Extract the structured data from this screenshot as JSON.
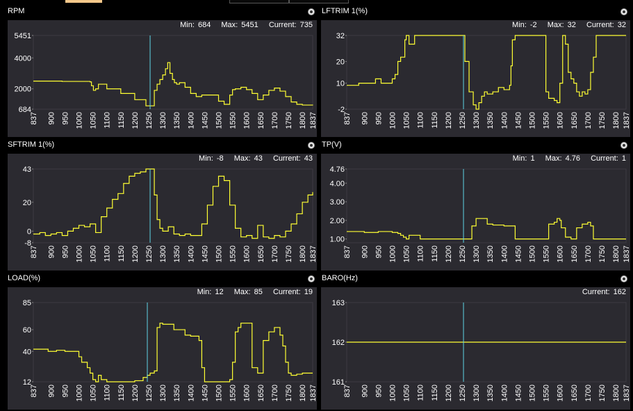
{
  "x_ticks": [
    "837",
    "900",
    "950",
    "1000",
    "1050",
    "1100",
    "1150",
    "1200",
    "1250",
    "1300",
    "1350",
    "1400",
    "1450",
    "1500",
    "1550",
    "1600",
    "1650",
    "1700",
    "1750",
    "1800",
    "1837"
  ],
  "colors": {
    "line": "#ffff33",
    "cursor": "#5fd6e8",
    "plot_bg": "#2b2a30",
    "grid": "#3c3b42"
  },
  "icons": {
    "settings": "settings-gear-icon"
  },
  "panels": {
    "rpm": {
      "title": "RPM",
      "min_label": "Min:",
      "min": "684",
      "max_label": "Max:",
      "max": "5451",
      "current_label": "Current:",
      "current": "735",
      "chart_data": {
        "type": "line",
        "ylim": [
          684,
          5451
        ],
        "y_ticks": [
          "5451",
          "4000",
          "2000",
          "684"
        ],
        "y_tick_values": [
          5451,
          4000,
          2000,
          684
        ],
        "xlim": [
          837,
          1837
        ],
        "cursor_x": 1255,
        "x": [
          837,
          940,
          1000,
          1040,
          1045,
          1052,
          1060,
          1070,
          1100,
          1150,
          1200,
          1240,
          1250,
          1255,
          1262,
          1270,
          1280,
          1290,
          1300,
          1310,
          1318,
          1326,
          1335,
          1342,
          1350,
          1360,
          1380,
          1400,
          1420,
          1440,
          1460,
          1500,
          1520,
          1540,
          1550,
          1560,
          1580,
          1600,
          1620,
          1640,
          1660,
          1680,
          1700,
          1720,
          1740,
          1760,
          1780,
          1800,
          1837
        ],
        "y": [
          2500,
          2480,
          2480,
          2450,
          2200,
          1900,
          2000,
          2300,
          2000,
          1700,
          1300,
          900,
          900,
          900,
          900,
          1900,
          2300,
          2600,
          2900,
          3300,
          3700,
          3000,
          2600,
          2400,
          2300,
          2400,
          2100,
          1700,
          1500,
          1600,
          1600,
          1200,
          1000,
          1600,
          1950,
          2000,
          2100,
          1950,
          1700,
          1300,
          1600,
          1900,
          2050,
          1850,
          1500,
          1150,
          1000,
          950,
          930
        ]
      }
    },
    "lftrim": {
      "title": "LFTRIM 1(%)",
      "min_label": "Min:",
      "min": "-2",
      "max_label": "Max:",
      "max": "32",
      "current_label": "Current:",
      "current": "32",
      "chart_data": {
        "type": "line",
        "ylim": [
          -2,
          32
        ],
        "y_ticks": [
          "32",
          "20",
          "10",
          "-2"
        ],
        "y_tick_values": [
          32,
          20,
          10,
          -2
        ],
        "xlim": [
          837,
          1837
        ],
        "cursor_x": 1255,
        "x": [
          837,
          880,
          900,
          940,
          960,
          980,
          1000,
          1010,
          1020,
          1030,
          1045,
          1050,
          1060,
          1080,
          1100,
          1200,
          1250,
          1260,
          1275,
          1290,
          1300,
          1310,
          1320,
          1330,
          1340,
          1360,
          1380,
          1400,
          1420,
          1425,
          1430,
          1440,
          1540,
          1550,
          1560,
          1580,
          1590,
          1600,
          1610,
          1620,
          1630,
          1640,
          1650,
          1660,
          1670,
          1680,
          1690,
          1700,
          1710,
          1720,
          1730,
          1837
        ],
        "y": [
          9,
          10,
          10,
          12,
          10,
          10,
          12,
          14,
          20,
          22,
          30,
          32,
          28,
          32,
          32,
          32,
          32,
          20,
          6,
          0,
          -2,
          1,
          4,
          6,
          5,
          6,
          8,
          7,
          9,
          18,
          30,
          32,
          32,
          6,
          3,
          2,
          1,
          10,
          32,
          28,
          15,
          12,
          10,
          6,
          4,
          6,
          5,
          7,
          15,
          22,
          32,
          32
        ]
      }
    },
    "sftrim": {
      "title": "SFTRIM 1(%)",
      "min_label": "Min:",
      "min": "-8",
      "max_label": "Max:",
      "max": "43",
      "current_label": "Current:",
      "current": "43",
      "chart_data": {
        "type": "line",
        "ylim": [
          -8,
          43
        ],
        "y_ticks": [
          "43",
          "20",
          "0",
          "-8"
        ],
        "y_tick_values": [
          43,
          20,
          0,
          -8
        ],
        "xlim": [
          837,
          1837
        ],
        "cursor_x": 1255,
        "x": [
          837,
          860,
          880,
          900,
          920,
          940,
          960,
          980,
          1000,
          1020,
          1040,
          1060,
          1080,
          1100,
          1120,
          1140,
          1160,
          1180,
          1200,
          1220,
          1240,
          1250,
          1260,
          1270,
          1280,
          1290,
          1300,
          1320,
          1340,
          1360,
          1380,
          1400,
          1420,
          1440,
          1460,
          1480,
          1500,
          1520,
          1540,
          1560,
          1580,
          1600,
          1620,
          1640,
          1660,
          1680,
          1700,
          1720,
          1740,
          1760,
          1780,
          1800,
          1820,
          1837
        ],
        "y": [
          -2,
          -1,
          -3,
          -2,
          -1,
          -3,
          0,
          2,
          4,
          3,
          5,
          -1,
          10,
          16,
          22,
          26,
          33,
          38,
          40,
          41,
          43,
          43,
          43,
          25,
          8,
          2,
          0,
          3,
          -2,
          -3,
          -2,
          -3,
          -3,
          5,
          18,
          31,
          38,
          35,
          18,
          2,
          -4,
          -3,
          -5,
          4,
          -4,
          -5,
          -3,
          -4,
          0,
          5,
          12,
          20,
          25,
          27
        ]
      }
    },
    "tp": {
      "title": "TP(V)",
      "min_label": "Min:",
      "min": "1",
      "max_label": "Max:",
      "max": "4.76",
      "current_label": "Current:",
      "current": "1",
      "chart_data": {
        "type": "line",
        "ylim": [
          0.8,
          4.76
        ],
        "y_ticks": [
          "4.76",
          "4.00",
          "3.00",
          "2.00",
          "1.00"
        ],
        "y_tick_values": [
          4.76,
          4.0,
          3.0,
          2.0,
          1.0
        ],
        "xlim": [
          837,
          1837
        ],
        "cursor_x": 1255,
        "x": [
          837,
          900,
          950,
          980,
          1000,
          1020,
          1030,
          1040,
          1050,
          1060,
          1100,
          1200,
          1250,
          1270,
          1285,
          1300,
          1330,
          1340,
          1360,
          1400,
          1430,
          1440,
          1550,
          1560,
          1580,
          1590,
          1600,
          1605,
          1620,
          1640,
          1660,
          1680,
          1700,
          1710,
          1720,
          1837
        ],
        "y": [
          1.4,
          1.35,
          1.4,
          1.4,
          1.35,
          1.3,
          1.2,
          1.1,
          1.0,
          1.2,
          1.0,
          1.0,
          1.0,
          1.0,
          1.7,
          2.1,
          2.1,
          1.8,
          1.75,
          1.7,
          1.7,
          1.0,
          1.0,
          1.8,
          1.9,
          2.1,
          2.0,
          1.6,
          1.1,
          1.0,
          1.6,
          1.8,
          1.9,
          1.7,
          1.0,
          1.0
        ]
      }
    },
    "load": {
      "title": "LOAD(%)",
      "min_label": "Min:",
      "min": "12",
      "max_label": "Max:",
      "max": "85",
      "current_label": "Current:",
      "current": "19",
      "chart_data": {
        "type": "line",
        "ylim": [
          12,
          85
        ],
        "y_ticks": [
          "85",
          "60",
          "40",
          "12"
        ],
        "y_tick_values": [
          85,
          60,
          40,
          12
        ],
        "xlim": [
          837,
          1837
        ],
        "cursor_x": 1245,
        "x": [
          837,
          870,
          890,
          920,
          950,
          980,
          1000,
          1010,
          1030,
          1040,
          1050,
          1060,
          1070,
          1080,
          1100,
          1150,
          1200,
          1230,
          1245,
          1255,
          1262,
          1270,
          1280,
          1290,
          1300,
          1340,
          1380,
          1400,
          1430,
          1440,
          1450,
          1500,
          1520,
          1540,
          1550,
          1560,
          1570,
          1580,
          1600,
          1620,
          1640,
          1660,
          1680,
          1700,
          1720,
          1730,
          1740,
          1750,
          1760,
          1780,
          1800,
          1837
        ],
        "y": [
          42,
          42,
          40,
          41,
          40,
          40,
          35,
          30,
          25,
          20,
          14,
          12,
          18,
          14,
          12,
          12,
          13,
          16,
          18,
          20,
          20,
          22,
          62,
          66,
          65,
          60,
          55,
          54,
          50,
          25,
          12,
          12,
          12,
          14,
          30,
          58,
          62,
          66,
          66,
          25,
          20,
          50,
          58,
          62,
          55,
          45,
          30,
          20,
          18,
          19,
          20,
          20
        ]
      }
    },
    "baro": {
      "title": "BARO(Hz)",
      "current_label": "Current:",
      "current": "162",
      "chart_data": {
        "type": "line",
        "ylim": [
          161,
          163
        ],
        "y_ticks": [
          "163",
          "162",
          "161"
        ],
        "y_tick_values": [
          163,
          162,
          161
        ],
        "xlim": [
          837,
          1837
        ],
        "cursor_x": 1255,
        "x": [
          837,
          1837
        ],
        "y": [
          162,
          162
        ]
      }
    }
  }
}
